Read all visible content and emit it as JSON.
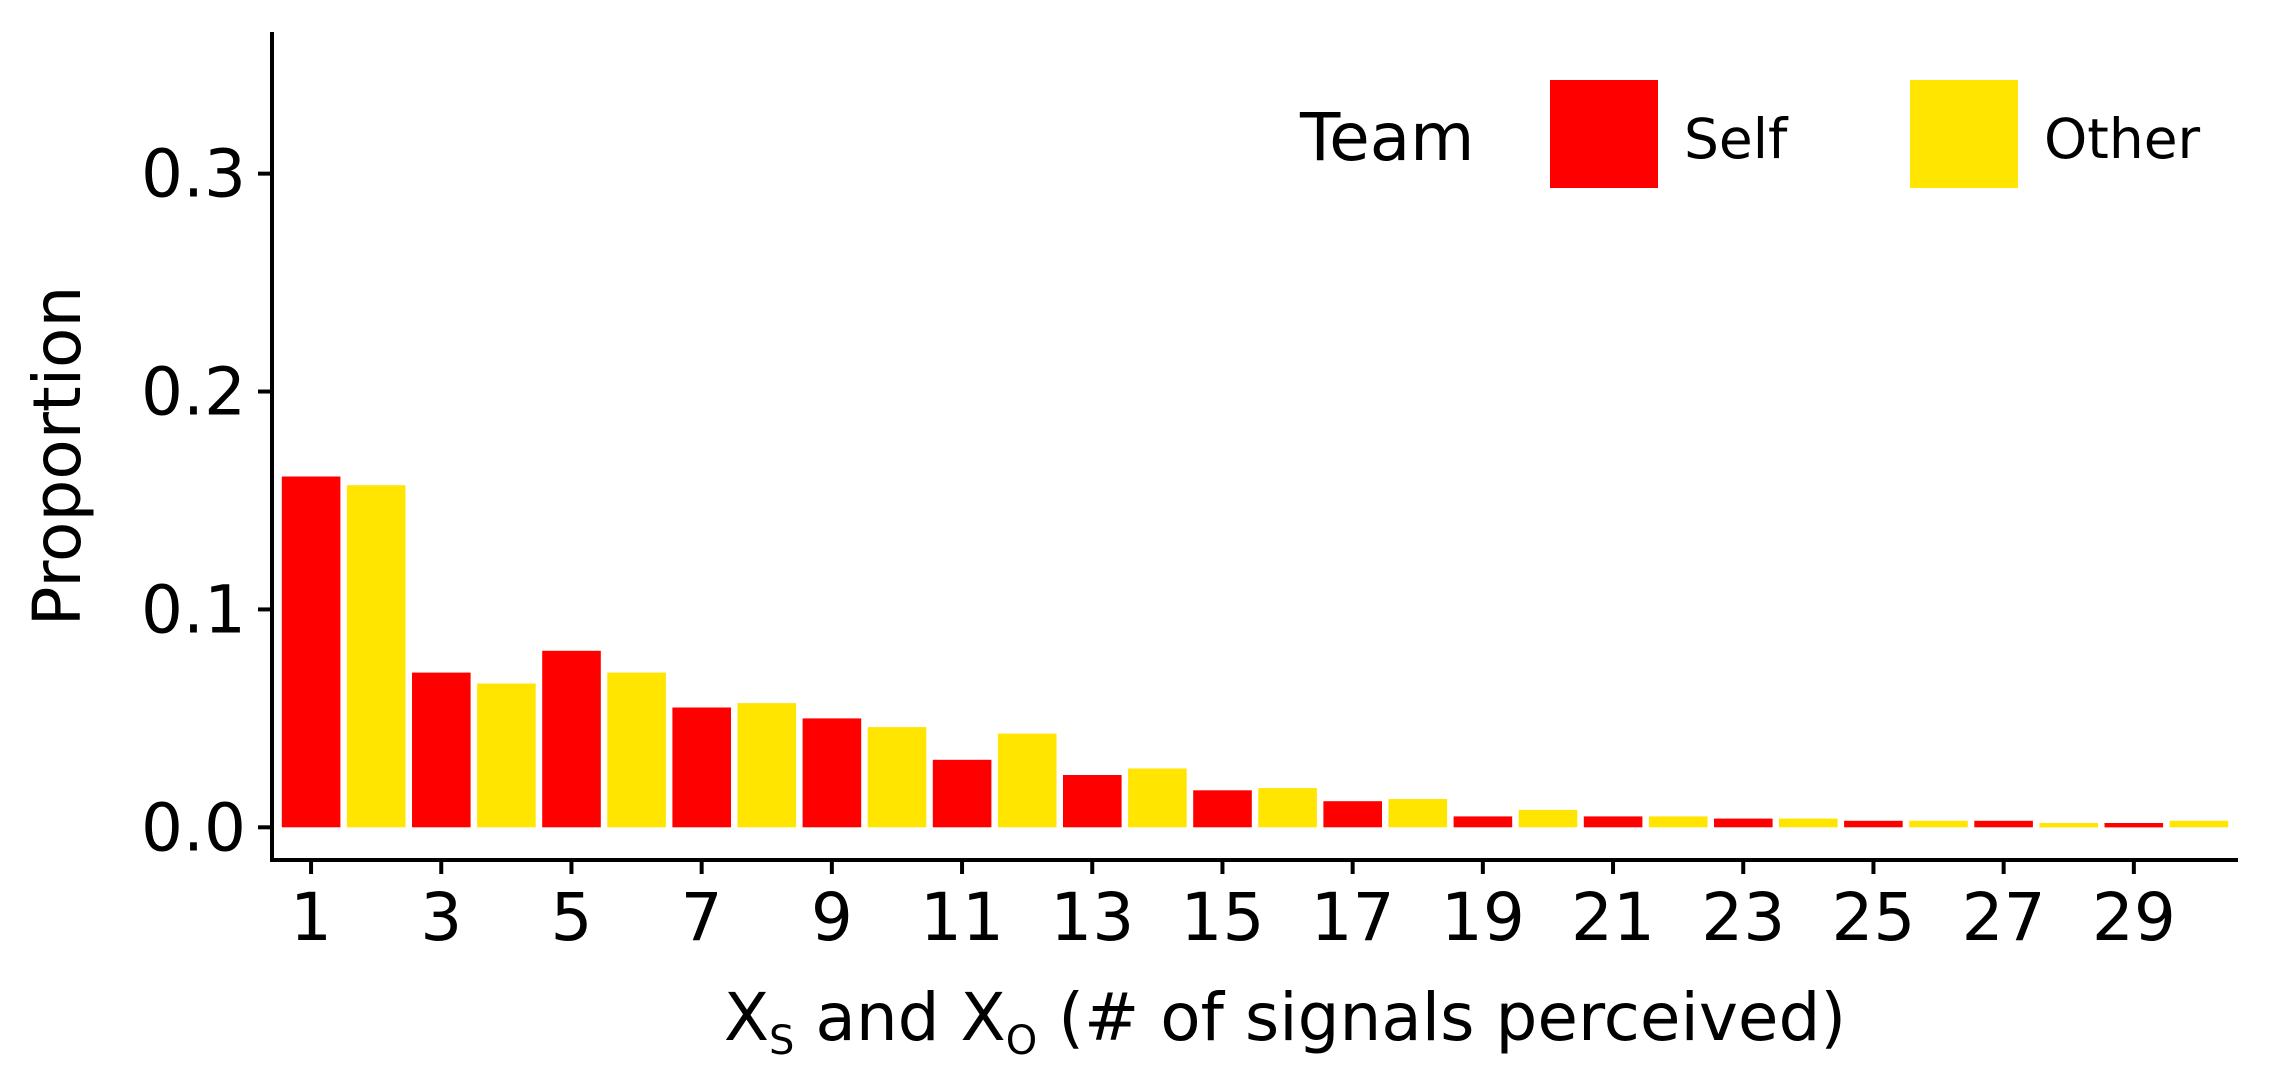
{
  "chart_data": {
    "type": "bar",
    "title": "",
    "xlabel_parts": [
      "X",
      "S",
      " and X",
      "O",
      " (# of signals perceived)"
    ],
    "ylabel": "Proportion",
    "ylim": [
      -0.015,
      0.365
    ],
    "yticks": [
      0.0,
      0.1,
      0.2,
      0.3
    ],
    "ytick_labels": [
      "0.0",
      "0.1",
      "0.2",
      "0.3"
    ],
    "categories": [
      1,
      2,
      3,
      4,
      5,
      6,
      7,
      8,
      9,
      10,
      11,
      12,
      13,
      14,
      15,
      16,
      17,
      18,
      19,
      20,
      21,
      22,
      23,
      24,
      25,
      26,
      27,
      28,
      29,
      30
    ],
    "xtick_labels": [
      "1",
      "3",
      "5",
      "7",
      "9",
      "11",
      "13",
      "15",
      "17",
      "19",
      "21",
      "23",
      "25",
      "27",
      "29"
    ],
    "xticks": [
      1,
      3,
      5,
      7,
      9,
      11,
      13,
      15,
      17,
      19,
      21,
      23,
      25,
      27,
      29
    ],
    "series": [
      {
        "name": "Self",
        "color": "#FF0000",
        "x": [
          1,
          3,
          5,
          7,
          9,
          11,
          13,
          15,
          17,
          19,
          21,
          23,
          25,
          27,
          29
        ],
        "values": [
          0.161,
          0.071,
          0.081,
          0.055,
          0.05,
          0.031,
          0.024,
          0.017,
          0.012,
          0.005,
          0.005,
          0.004,
          0.003,
          0.003,
          0.002
        ]
      },
      {
        "name": "Other",
        "color": "#FFE500",
        "x": [
          2,
          4,
          6,
          8,
          10,
          12,
          14,
          16,
          18,
          20,
          22,
          24,
          26,
          28,
          30
        ],
        "values": [
          0.157,
          0.066,
          0.071,
          0.057,
          0.046,
          0.043,
          0.027,
          0.018,
          0.013,
          0.008,
          0.005,
          0.004,
          0.003,
          0.002,
          0.003
        ]
      }
    ],
    "legend": {
      "title": "Team",
      "placement": "top-right",
      "entries": [
        {
          "label": "Self",
          "color": "#FF0000"
        },
        {
          "label": "Other",
          "color": "#FFE500"
        }
      ]
    },
    "grid": false
  }
}
